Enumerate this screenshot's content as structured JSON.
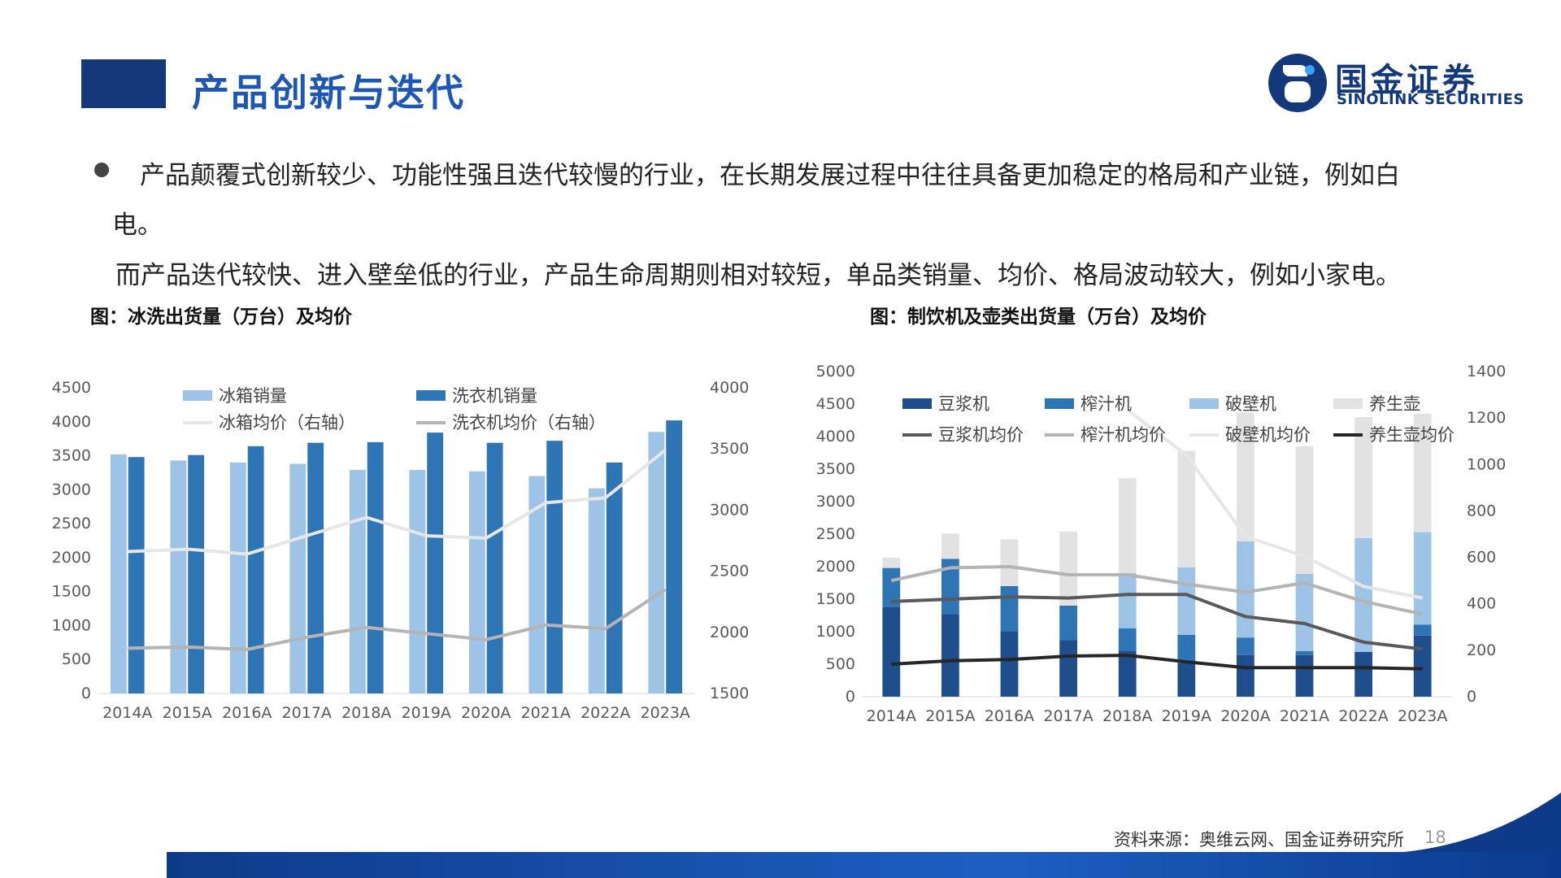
{
  "header": {
    "title": "产品创新与迭代",
    "logo_cn": "国金证券",
    "logo_en": "SINOLINK SECURITIES",
    "brand_color": "#13397a"
  },
  "body": {
    "para1": "产品颠覆式创新较少、功能性强且迭代较慢的行业，在长期发展过程中往往具备更加稳定的格局和产业链，例如白",
    "para1b": "电。",
    "para2": "而产品迭代较快、进入壁垒低的行业，产品生命周期则相对较短，单品类销量、均价、格局波动较大，例如小家电。"
  },
  "figures": {
    "fig1_title": "图：冰洗出货量（万台）及均价",
    "fig2_title": "图：制饮机及壶类出货量（万台）及均价"
  },
  "footer": {
    "source": "资料来源：奥维云网、国金证券研究所",
    "page": "18"
  },
  "chart_data": [
    {
      "type": "bar",
      "categories": [
        "2014A",
        "2015A",
        "2016A",
        "2017A",
        "2018A",
        "2019A",
        "2020A",
        "2021A",
        "2022A",
        "2023A"
      ],
      "ylim": [
        0,
        4500
      ],
      "yticks": [
        0,
        500,
        1000,
        1500,
        2000,
        2500,
        3000,
        3500,
        4000,
        4500
      ],
      "y2lim": [
        1500,
        4000
      ],
      "y2ticks": [
        1500,
        2000,
        2500,
        3000,
        3500,
        4000
      ],
      "series": [
        {
          "name": "冰箱销量",
          "kind": "bar",
          "axis": "left",
          "color": "#9dc3e6",
          "values": [
            3520,
            3430,
            3400,
            3380,
            3290,
            3290,
            3270,
            3200,
            3020,
            3850
          ]
        },
        {
          "name": "洗衣机销量",
          "kind": "bar",
          "axis": "left",
          "color": "#2e75b6",
          "values": [
            3480,
            3510,
            3640,
            3690,
            3700,
            3840,
            3690,
            3720,
            3400,
            4020
          ]
        },
        {
          "name": "冰箱均价（右轴）",
          "kind": "line",
          "axis": "right",
          "color": "#e6e6e6",
          "values": [
            2660,
            2680,
            2640,
            2790,
            2940,
            2790,
            2770,
            3060,
            3100,
            3490
          ]
        },
        {
          "name": "洗衣机均价（右轴）",
          "kind": "line",
          "axis": "right",
          "color": "#b4b4b4",
          "values": [
            1870,
            1880,
            1860,
            1960,
            2040,
            1990,
            1940,
            2060,
            2030,
            2350
          ]
        }
      ]
    },
    {
      "type": "bar",
      "stacked": true,
      "categories": [
        "2014A",
        "2015A",
        "2016A",
        "2017A",
        "2018A",
        "2019A",
        "2020A",
        "2021A",
        "2022A",
        "2023A"
      ],
      "ylim": [
        0,
        5000
      ],
      "yticks": [
        0,
        500,
        1000,
        1500,
        2000,
        2500,
        3000,
        3500,
        4000,
        4500,
        5000
      ],
      "y2lim": [
        0,
        1400
      ],
      "y2ticks": [
        0,
        200,
        400,
        600,
        800,
        1000,
        1200,
        1400
      ],
      "series": [
        {
          "name": "豆浆机",
          "kind": "bar",
          "axis": "left",
          "color": "#1f4e8c",
          "values": [
            1380,
            1270,
            1010,
            870,
            700,
            520,
            640,
            640,
            690,
            940
          ]
        },
        {
          "name": "榨汁机",
          "kind": "bar",
          "axis": "left",
          "color": "#2e75b6",
          "values": [
            600,
            850,
            690,
            530,
            350,
            430,
            270,
            60,
            0,
            170
          ]
        },
        {
          "name": "破壁机",
          "kind": "bar",
          "axis": "left",
          "color": "#9dc3e6",
          "values": [
            0,
            0,
            0,
            0,
            850,
            1040,
            1480,
            1190,
            1750,
            1420
          ]
        },
        {
          "name": "养生壶",
          "kind": "bar",
          "axis": "left",
          "color": "#e2e2e2",
          "values": [
            160,
            390,
            720,
            1140,
            1460,
            1790,
            1980,
            1960,
            1860,
            1820
          ]
        },
        {
          "name": "豆浆机均价",
          "kind": "line",
          "axis": "right",
          "color": "#595959",
          "values": [
            410,
            420,
            430,
            425,
            440,
            440,
            345,
            315,
            235,
            205
          ]
        },
        {
          "name": "榨汁机均价",
          "kind": "line",
          "axis": "right",
          "color": "#b4b4b4",
          "values": [
            500,
            555,
            560,
            525,
            525,
            485,
            450,
            490,
            410,
            355
          ]
        },
        {
          "name": "破壁机均价",
          "kind": "line",
          "axis": "right",
          "color": "#e6e6e6",
          "values": [
            null,
            null,
            null,
            null,
            1235,
            1040,
            690,
            605,
            475,
            425
          ]
        },
        {
          "name": "养生壶均价",
          "kind": "line",
          "axis": "right",
          "color": "#262626",
          "values": [
            140,
            155,
            160,
            175,
            178,
            150,
            125,
            125,
            125,
            120
          ]
        }
      ]
    }
  ]
}
